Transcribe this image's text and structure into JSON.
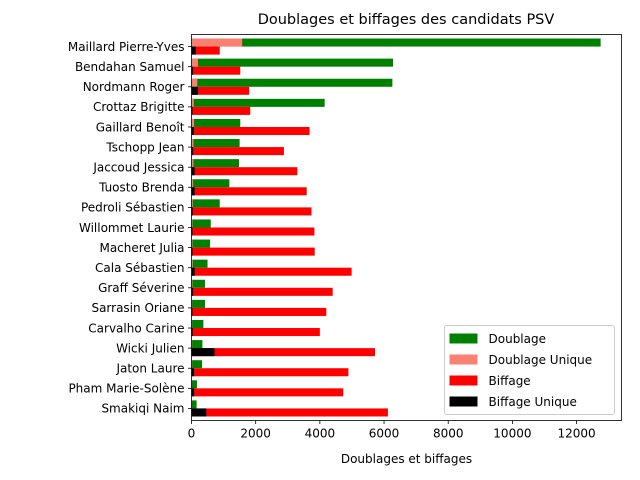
{
  "chart_data": {
    "type": "bar",
    "orientation": "horizontal",
    "title": "Doublages et biffages des candidats PSV",
    "xlabel": "Doublages et biffages",
    "ylabel": "",
    "xlim": [
      0,
      13400
    ],
    "xticks": [
      0,
      2000,
      4000,
      6000,
      8000,
      10000,
      12000
    ],
    "grid": false,
    "legend_position": "lower-right",
    "categories": [
      "Maillard Pierre-Yves",
      "Bendahan Samuel",
      "Nordmann Roger",
      "Crottaz Brigitte",
      "Gaillard Benoît",
      "Tschopp Jean",
      "Jaccoud Jessica",
      "Tuosto Brenda",
      "Pedroli Sébastien",
      "Willommet Laurie",
      "Macheret Julia",
      "Cala Sébastien",
      "Graff Séverine",
      "Sarrasin Oriane",
      "Carvalho Carine",
      "Wicki Julien",
      "Jaton Laure",
      "Pham Marie-Solène",
      "Smakiqi Naim"
    ],
    "series": [
      {
        "name": "Doublage",
        "color": "#008000",
        "values": [
          12750,
          6280,
          6260,
          4150,
          1520,
          1500,
          1480,
          1180,
          880,
          600,
          580,
          500,
          420,
          420,
          370,
          340,
          330,
          170,
          160
        ]
      },
      {
        "name": "Doublage Unique",
        "color": "#fa8072",
        "values": [
          1580,
          200,
          180,
          70,
          80,
          60,
          60,
          50,
          40,
          30,
          30,
          40,
          30,
          20,
          20,
          20,
          20,
          10,
          10
        ]
      },
      {
        "name": "Biffage",
        "color": "#ff0000",
        "values": [
          880,
          1520,
          1800,
          1830,
          3680,
          2880,
          3300,
          3590,
          3740,
          3830,
          3840,
          4990,
          4400,
          4200,
          4000,
          5720,
          4890,
          4730,
          6120
        ]
      },
      {
        "name": "Biffage Unique",
        "color": "#000000",
        "values": [
          130,
          50,
          200,
          30,
          70,
          50,
          100,
          100,
          40,
          30,
          30,
          100,
          50,
          30,
          40,
          720,
          80,
          80,
          460
        ]
      }
    ]
  }
}
